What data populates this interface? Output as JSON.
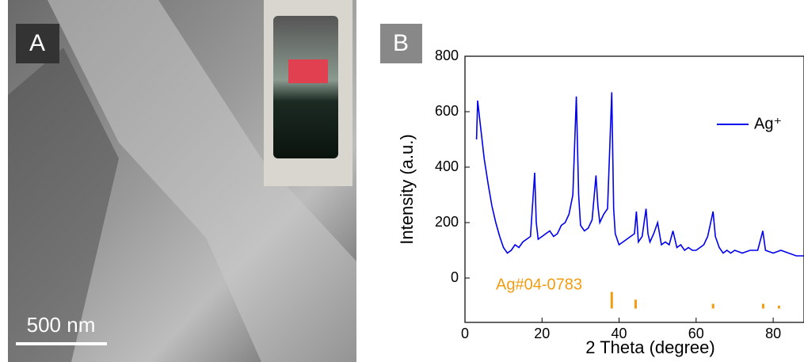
{
  "panel_a": {
    "label": "A",
    "scale_bar": "500 nm"
  },
  "chart_data": {
    "type": "line",
    "panel_label": "B",
    "x_label": "2 Theta (degree)",
    "y_label": "Intensity (a.u.)",
    "xlim": [
      0,
      88
    ],
    "xticks": [
      0,
      20,
      40,
      60,
      80
    ],
    "ylim": [
      -160,
      800
    ],
    "yticks": [
      0,
      200,
      400,
      600,
      800
    ],
    "legend": "upper right",
    "series": [
      {
        "name": "Ag⁺",
        "color": "#0000ee",
        "x": [
          3,
          3.3,
          4,
          5,
          6,
          7,
          8,
          9,
          10,
          11,
          12,
          13,
          14,
          15,
          16,
          17,
          18.1,
          18.5,
          19,
          20,
          21,
          22,
          23,
          24,
          25,
          26,
          27,
          28,
          28.9,
          29.5,
          30,
          31,
          32,
          33,
          34,
          34.5,
          35,
          36,
          37,
          38.1,
          38.6,
          39,
          40,
          41,
          42,
          43,
          44,
          44.5,
          45,
          46,
          47,
          47.5,
          48,
          49,
          50,
          51,
          52,
          53,
          54,
          55,
          56,
          57,
          58,
          59,
          60,
          61,
          62,
          63,
          64.4,
          65,
          66,
          67,
          68,
          69,
          70,
          72,
          74,
          76,
          77.3,
          78,
          80,
          82,
          84,
          86,
          88
        ],
        "values": [
          500,
          640,
          550,
          430,
          340,
          260,
          200,
          150,
          110,
          90,
          100,
          120,
          110,
          130,
          140,
          150,
          380,
          200,
          140,
          150,
          160,
          170,
          150,
          160,
          190,
          200,
          230,
          300,
          655,
          300,
          190,
          170,
          180,
          210,
          370,
          260,
          200,
          230,
          250,
          670,
          250,
          160,
          120,
          130,
          140,
          150,
          160,
          240,
          130,
          150,
          250,
          160,
          130,
          160,
          200,
          120,
          130,
          120,
          170,
          110,
          120,
          100,
          110,
          100,
          100,
          110,
          120,
          150,
          240,
          150,
          110,
          90,
          100,
          90,
          100,
          90,
          100,
          100,
          170,
          100,
          90,
          100,
          90,
          80,
          80
        ]
      }
    ],
    "reference": {
      "name": "Ag#04-0783",
      "color": "#f39c12",
      "base": -110,
      "x": [
        38.1,
        44.3,
        64.4,
        77.4,
        81.5
      ],
      "values": [
        -50,
        -78,
        -93,
        -93,
        -100
      ]
    }
  }
}
